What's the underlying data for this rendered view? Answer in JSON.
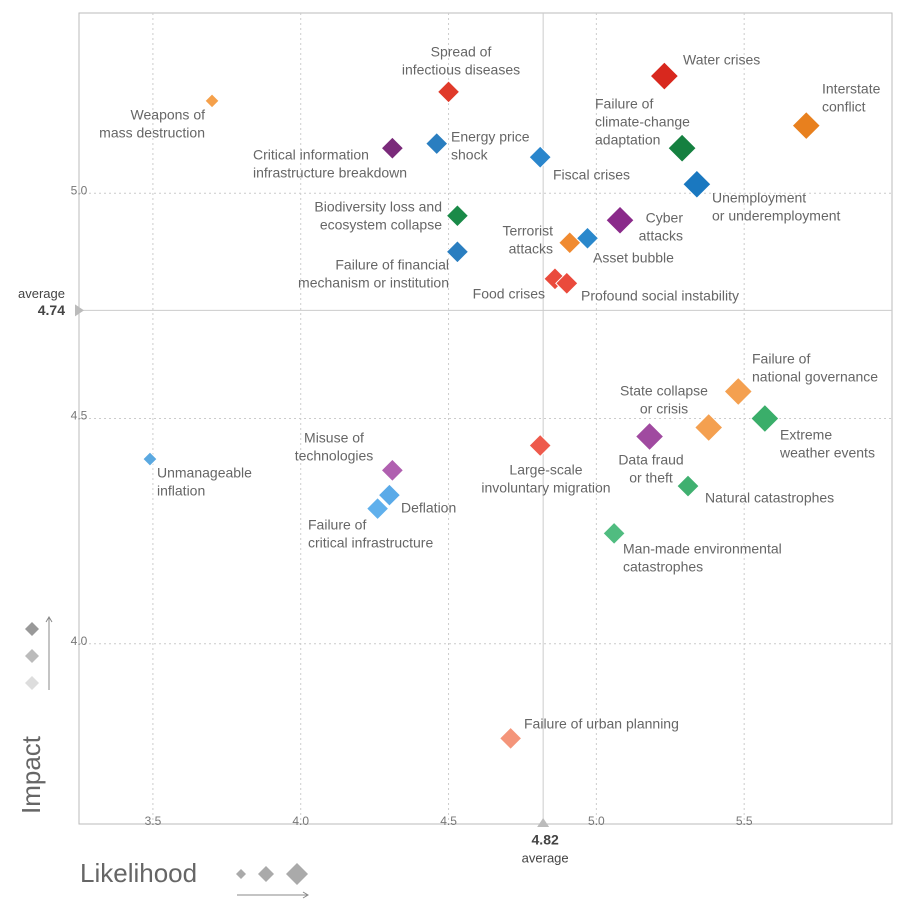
{
  "chart_data": {
    "type": "scatter",
    "x_title": "Likelihood",
    "y_title": "Impact",
    "xlim": [
      3.25,
      6.0
    ],
    "ylim": [
      3.6,
      5.4
    ],
    "xticks": [
      3.5,
      {
        "value": 4,
        "label": "4.0"
      },
      4.5,
      {
        "value": 5,
        "label": "5.0"
      },
      5.5
    ],
    "yticks": [
      {
        "value": 4,
        "label": "4.0"
      },
      4.5,
      {
        "value": 5,
        "label": "5.0"
      }
    ],
    "grid": true,
    "x_average": {
      "value": 4.82,
      "text": "average"
    },
    "y_average": {
      "value": 4.74,
      "text": "average"
    },
    "labels": [
      [
        "Weapons of",
        "mass destruction"
      ],
      [
        "Spread of",
        "infectious diseases"
      ],
      [
        "Water crises"
      ],
      [
        "Interstate",
        "conflict"
      ],
      [
        "Critical information",
        "infrastructure breakdown"
      ],
      [
        "Energy price",
        "shock"
      ],
      [
        "Fiscal crises"
      ],
      [
        "Failure of",
        "climate-change",
        "adaptation"
      ],
      [
        "Unemployment",
        "or underemployment"
      ],
      [
        "Biodiversity loss and",
        "ecosystem collapse"
      ],
      [
        "Cyber",
        "attacks"
      ],
      [
        "Terrorist",
        "attacks"
      ],
      [
        "Asset bubble"
      ],
      [
        "Failure of financial",
        "mechanism or institution"
      ],
      [
        "Food crises"
      ],
      [
        "Profound social instability"
      ],
      [
        "Failure of",
        "national governance"
      ],
      [
        "State collapse",
        "or crisis"
      ],
      [
        "Extreme",
        "weather events"
      ],
      [
        "Data fraud",
        "or theft"
      ],
      [
        "Large-scale",
        "involuntary migration"
      ],
      [
        "Natural catastrophes"
      ],
      [
        "Unmanageable",
        "inflation"
      ],
      [
        "Misuse of",
        "technologies"
      ],
      [
        "Deflation"
      ],
      [
        "Failure of",
        "critical infrastructure"
      ],
      [
        "Man-made environmental",
        "catastrophes"
      ],
      [
        "Failure of urban planning"
      ]
    ],
    "x": [
      3.7,
      4.5,
      5.23,
      5.71,
      4.31,
      4.46,
      4.81,
      5.29,
      5.34,
      4.53,
      5.08,
      4.91,
      4.97,
      4.53,
      4.86,
      4.9,
      5.48,
      5.38,
      5.57,
      5.18,
      4.81,
      5.31,
      3.49,
      4.31,
      4.3,
      4.26,
      5.06,
      4.71
    ],
    "y": [
      5.205,
      5.225,
      5.26,
      5.15,
      5.1,
      5.11,
      5.08,
      5.1,
      5.02,
      4.95,
      4.94,
      4.89,
      4.9,
      4.87,
      4.81,
      4.8,
      4.56,
      4.48,
      4.5,
      4.46,
      4.44,
      4.35,
      4.41,
      4.385,
      4.33,
      4.3,
      4.245,
      3.79
    ],
    "sizes": [
      1,
      2,
      3,
      3,
      2,
      2,
      2,
      3,
      3,
      2,
      3,
      2,
      2,
      2,
      2,
      2,
      3,
      3,
      3,
      3,
      2,
      2,
      1,
      2,
      2,
      2,
      2,
      2
    ],
    "colors": [
      "#f5a04a",
      "#e03a2a",
      "#d8281e",
      "#e8801e",
      "#7a2a7a",
      "#2a7ec0",
      "#2a86cc",
      "#158040",
      "#1a78c0",
      "#1a8a48",
      "#8a2a8a",
      "#f08a30",
      "#2a88cc",
      "#2a7ec0",
      "#ea4a3c",
      "#ea4a3c",
      "#f4a050",
      "#f4a050",
      "#3aae6a",
      "#a04aa0",
      "#ee5a4c",
      "#40b070",
      "#5aa8e0",
      "#b060b0",
      "#5aaae8",
      "#60b0ec",
      "#50bc80",
      "#f4957a"
    ]
  }
}
